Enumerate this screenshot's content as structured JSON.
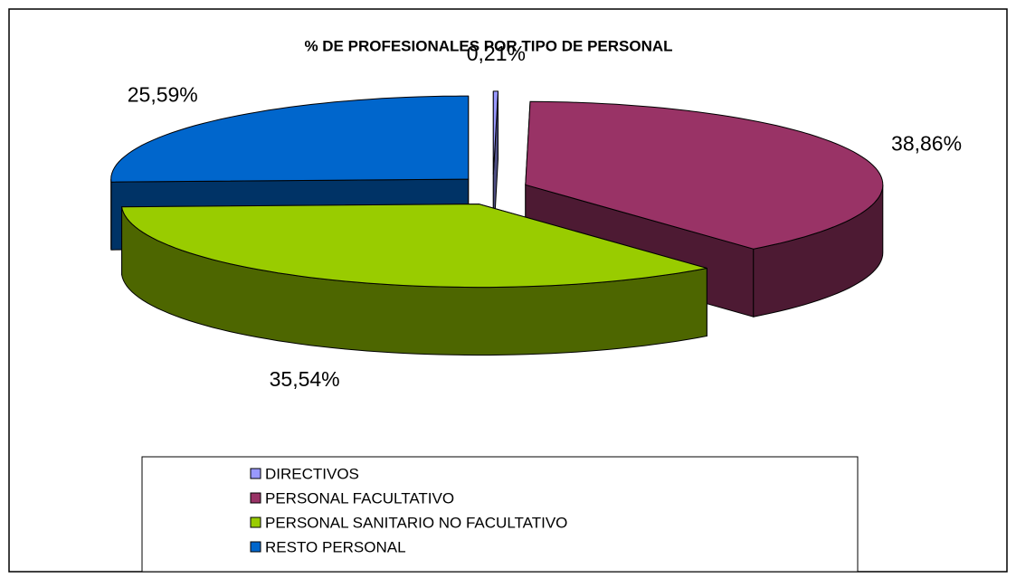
{
  "chart_data": {
    "type": "pie",
    "title": "% DE PROFESIONALES POR TIPO DE PERSONAL",
    "categories": [
      "DIRECTIVOS",
      "PERSONAL FACULTATIVO",
      "PERSONAL SANITARIO NO FACULTATIVO",
      "RESTO PERSONAL"
    ],
    "values": [
      0.21,
      38.86,
      35.54,
      25.59
    ],
    "value_labels": [
      "0,21%",
      "38,86%",
      "35,54%",
      "25,59%"
    ],
    "colors": [
      "#9999ff",
      "#993366",
      "#99cc00",
      "#0066cc"
    ],
    "legend": "bottom"
  }
}
